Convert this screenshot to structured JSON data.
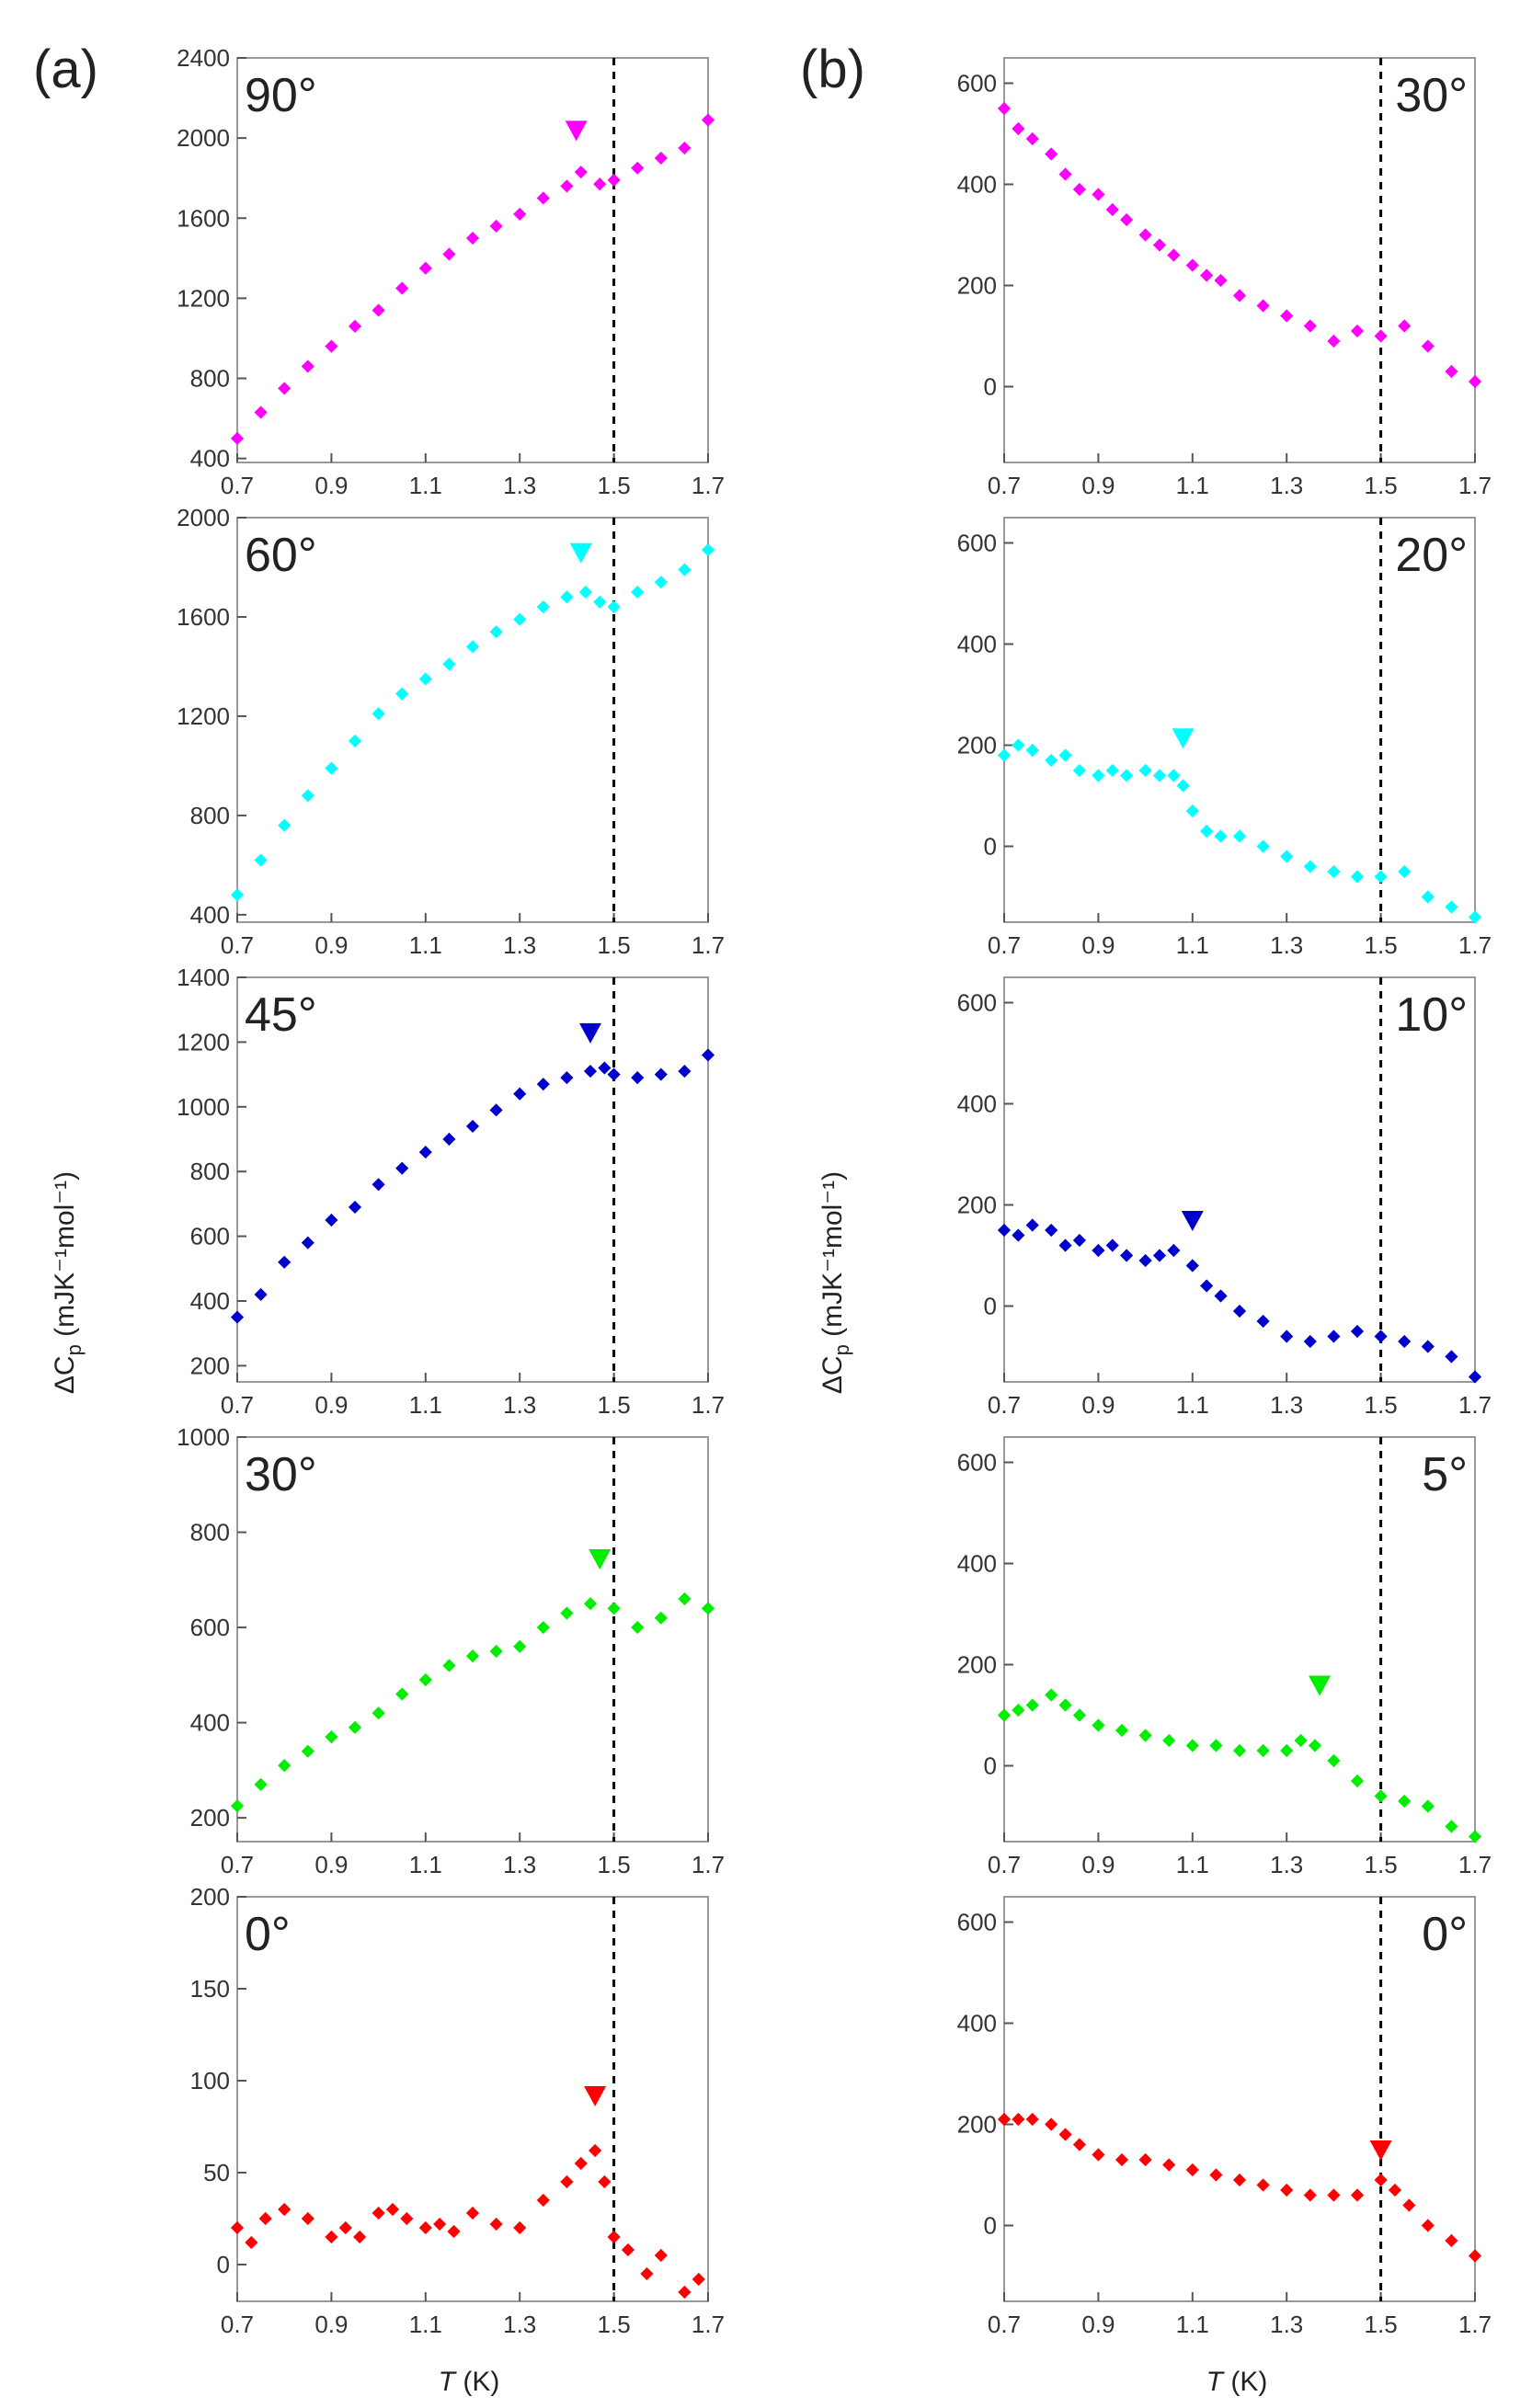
{
  "figure": {
    "panel_a_label": "(a)",
    "panel_b_label": "(b)",
    "y_axis_label_prefix": "ΔC",
    "y_axis_label_sub": "p",
    "y_axis_label_units": " (mJK⁻¹mol⁻¹)",
    "x_axis_label_var": "T",
    "x_axis_label_units": " (K)"
  },
  "colors": {
    "90": "#ff00ff",
    "60": "#00ffff",
    "45": "#0000cc",
    "30": "#00ee00",
    "20": "#00ffff",
    "10": "#0000cc",
    "5": "#00ee00",
    "0": "#ff0000",
    "dash": "#000000",
    "frame": "#999999"
  },
  "chart_data": [
    {
      "type": "scatter",
      "column": "a",
      "label": "90°",
      "color_key": "90",
      "xlim": [
        0.7,
        1.7
      ],
      "ylim": [
        380,
        2400
      ],
      "yticks": [
        400,
        800,
        1200,
        1600,
        2000,
        2400
      ],
      "xticks": [
        0.7,
        0.9,
        1.1,
        1.3,
        1.5,
        1.7
      ],
      "xticklabels": [
        "0.7",
        "0.9",
        "1.1",
        "1.3",
        "1.5",
        "1.7"
      ],
      "vline": 1.5,
      "marker": {
        "x": 1.42,
        "y": 2040
      },
      "x": [
        0.7,
        0.75,
        0.8,
        0.85,
        0.9,
        0.95,
        1.0,
        1.05,
        1.1,
        1.15,
        1.2,
        1.25,
        1.3,
        1.35,
        1.4,
        1.43,
        1.47,
        1.5,
        1.55,
        1.6,
        1.65,
        1.7
      ],
      "y": [
        500,
        630,
        750,
        860,
        960,
        1060,
        1140,
        1250,
        1350,
        1420,
        1500,
        1560,
        1620,
        1700,
        1760,
        1830,
        1770,
        1790,
        1850,
        1900,
        1950,
        2090
      ]
    },
    {
      "type": "scatter",
      "column": "a",
      "label": "60°",
      "color_key": "60",
      "xlim": [
        0.7,
        1.7
      ],
      "ylim": [
        370,
        2000
      ],
      "yticks": [
        400,
        800,
        1200,
        1600,
        2000
      ],
      "xticks": [
        0.7,
        0.9,
        1.1,
        1.3,
        1.5,
        1.7
      ],
      "xticklabels": [
        "0.7",
        "0.9",
        "1.1",
        "1.3",
        "1.5",
        "1.7"
      ],
      "vline": 1.5,
      "marker": {
        "x": 1.43,
        "y": 1860
      },
      "x": [
        0.7,
        0.75,
        0.8,
        0.85,
        0.9,
        0.95,
        1.0,
        1.05,
        1.1,
        1.15,
        1.2,
        1.25,
        1.3,
        1.35,
        1.4,
        1.44,
        1.47,
        1.5,
        1.55,
        1.6,
        1.65,
        1.7
      ],
      "y": [
        480,
        620,
        760,
        880,
        990,
        1100,
        1210,
        1290,
        1350,
        1410,
        1480,
        1540,
        1590,
        1640,
        1680,
        1700,
        1660,
        1640,
        1700,
        1740,
        1790,
        1870
      ]
    },
    {
      "type": "scatter",
      "column": "a",
      "label": "45°",
      "color_key": "45",
      "xlim": [
        0.7,
        1.7
      ],
      "ylim": [
        150,
        1400
      ],
      "yticks": [
        200,
        400,
        600,
        800,
        1000,
        1200,
        1400
      ],
      "xticks": [
        0.7,
        0.9,
        1.1,
        1.3,
        1.5,
        1.7
      ],
      "xticklabels": [
        "0.7",
        "0.9",
        "1.1",
        "1.3",
        "1.5",
        "1.7"
      ],
      "vline": 1.5,
      "marker": {
        "x": 1.45,
        "y": 1230
      },
      "x": [
        0.7,
        0.75,
        0.8,
        0.85,
        0.9,
        0.95,
        1.0,
        1.05,
        1.1,
        1.15,
        1.2,
        1.25,
        1.3,
        1.35,
        1.4,
        1.45,
        1.48,
        1.5,
        1.55,
        1.6,
        1.65,
        1.7
      ],
      "y": [
        350,
        420,
        520,
        580,
        650,
        690,
        760,
        810,
        860,
        900,
        940,
        990,
        1040,
        1070,
        1090,
        1110,
        1120,
        1100,
        1090,
        1100,
        1110,
        1160
      ]
    },
    {
      "type": "scatter",
      "column": "a",
      "label": "30°",
      "color_key": "30",
      "xlim": [
        0.7,
        1.7
      ],
      "ylim": [
        150,
        1000
      ],
      "yticks": [
        200,
        400,
        600,
        800,
        1000
      ],
      "xticks": [
        0.7,
        0.9,
        1.1,
        1.3,
        1.5,
        1.7
      ],
      "xticklabels": [
        "0.7",
        "0.9",
        "1.1",
        "1.3",
        "1.5",
        "1.7"
      ],
      "vline": 1.5,
      "marker": {
        "x": 1.47,
        "y": 745
      },
      "x": [
        0.7,
        0.75,
        0.8,
        0.85,
        0.9,
        0.95,
        1.0,
        1.05,
        1.1,
        1.15,
        1.2,
        1.25,
        1.3,
        1.35,
        1.4,
        1.45,
        1.5,
        1.55,
        1.6,
        1.65,
        1.7
      ],
      "y": [
        225,
        270,
        310,
        340,
        370,
        390,
        420,
        460,
        490,
        520,
        540,
        550,
        560,
        600,
        630,
        650,
        640,
        600,
        620,
        660,
        640
      ]
    },
    {
      "type": "scatter",
      "column": "a",
      "label": "0°",
      "color_key": "0",
      "xlim": [
        0.7,
        1.7
      ],
      "ylim": [
        -20,
        200
      ],
      "yticks": [
        0,
        50,
        100,
        150,
        200
      ],
      "xticks": [
        0.7,
        0.9,
        1.1,
        1.3,
        1.5,
        1.7
      ],
      "xticklabels": [
        "0.7",
        "0.9",
        "1.1",
        "1.3",
        "1.5",
        "1.7"
      ],
      "vline": 1.5,
      "marker": {
        "x": 1.46,
        "y": 92
      },
      "x": [
        0.7,
        0.73,
        0.76,
        0.8,
        0.85,
        0.9,
        0.93,
        0.96,
        1.0,
        1.03,
        1.06,
        1.1,
        1.13,
        1.16,
        1.2,
        1.25,
        1.3,
        1.35,
        1.4,
        1.43,
        1.46,
        1.48,
        1.5,
        1.53,
        1.57,
        1.6,
        1.65,
        1.68
      ],
      "y": [
        20,
        12,
        25,
        30,
        25,
        15,
        20,
        15,
        28,
        30,
        25,
        20,
        22,
        18,
        28,
        22,
        20,
        35,
        45,
        55,
        62,
        45,
        15,
        8,
        -5,
        5,
        -15,
        -8
      ]
    },
    {
      "type": "scatter",
      "column": "b",
      "label": "30°",
      "color_key": "90",
      "xlim": [
        0.7,
        1.7
      ],
      "ylim": [
        -150,
        650
      ],
      "yticks": [
        0,
        200,
        400,
        600
      ],
      "xticks": [
        0.7,
        0.9,
        1.1,
        1.3,
        1.5,
        1.7
      ],
      "xticklabels": [
        "0.7",
        "0.9",
        "1.1",
        "1.3",
        "1.5",
        "1.7"
      ],
      "vline": 1.5,
      "marker": null,
      "x": [
        0.7,
        0.73,
        0.76,
        0.8,
        0.83,
        0.86,
        0.9,
        0.93,
        0.96,
        1.0,
        1.03,
        1.06,
        1.1,
        1.13,
        1.16,
        1.2,
        1.25,
        1.3,
        1.35,
        1.4,
        1.45,
        1.5,
        1.55,
        1.6,
        1.65,
        1.7
      ],
      "y": [
        550,
        510,
        490,
        460,
        420,
        390,
        380,
        350,
        330,
        300,
        280,
        260,
        240,
        220,
        210,
        180,
        160,
        140,
        120,
        90,
        110,
        100,
        120,
        80,
        30,
        10
      ]
    },
    {
      "type": "scatter",
      "column": "b",
      "label": "20°",
      "color_key": "20",
      "xlim": [
        0.7,
        1.7
      ],
      "ylim": [
        -150,
        650
      ],
      "yticks": [
        0,
        200,
        400,
        600
      ],
      "xticks": [
        0.7,
        0.9,
        1.1,
        1.3,
        1.5,
        1.7
      ],
      "xticklabels": [
        "0.7",
        "0.9",
        "1.1",
        "1.3",
        "1.5",
        "1.7"
      ],
      "vline": 1.5,
      "marker": {
        "x": 1.08,
        "y": 215
      },
      "x": [
        0.7,
        0.73,
        0.76,
        0.8,
        0.83,
        0.86,
        0.9,
        0.93,
        0.96,
        1.0,
        1.03,
        1.06,
        1.08,
        1.1,
        1.13,
        1.16,
        1.2,
        1.25,
        1.3,
        1.35,
        1.4,
        1.45,
        1.5,
        1.55,
        1.6,
        1.65,
        1.7
      ],
      "y": [
        180,
        200,
        190,
        170,
        180,
        150,
        140,
        150,
        140,
        150,
        140,
        140,
        120,
        70,
        30,
        20,
        20,
        0,
        -20,
        -40,
        -50,
        -60,
        -60,
        -50,
        -100,
        -120,
        -140
      ]
    },
    {
      "type": "scatter",
      "column": "b",
      "label": "10°",
      "color_key": "10",
      "xlim": [
        0.7,
        1.7
      ],
      "ylim": [
        -150,
        650
      ],
      "yticks": [
        0,
        200,
        400,
        600
      ],
      "xticks": [
        0.7,
        0.9,
        1.1,
        1.3,
        1.5,
        1.7
      ],
      "xticklabels": [
        "0.7",
        "0.9",
        "1.1",
        "1.3",
        "1.5",
        "1.7"
      ],
      "vline": 1.5,
      "marker": {
        "x": 1.1,
        "y": 170
      },
      "x": [
        0.7,
        0.73,
        0.76,
        0.8,
        0.83,
        0.86,
        0.9,
        0.93,
        0.96,
        1.0,
        1.03,
        1.06,
        1.1,
        1.13,
        1.16,
        1.2,
        1.25,
        1.3,
        1.35,
        1.4,
        1.45,
        1.5,
        1.55,
        1.6,
        1.65,
        1.7
      ],
      "y": [
        150,
        140,
        160,
        150,
        120,
        130,
        110,
        120,
        100,
        90,
        100,
        110,
        80,
        40,
        20,
        -10,
        -30,
        -60,
        -70,
        -60,
        -50,
        -60,
        -70,
        -80,
        -100,
        -140
      ]
    },
    {
      "type": "scatter",
      "column": "b",
      "label": "5°",
      "color_key": "5",
      "xlim": [
        0.7,
        1.7
      ],
      "ylim": [
        -150,
        650
      ],
      "yticks": [
        0,
        200,
        400,
        600
      ],
      "xticks": [
        0.7,
        0.9,
        1.1,
        1.3,
        1.5,
        1.7
      ],
      "xticklabels": [
        "0.7",
        "0.9",
        "1.1",
        "1.3",
        "1.5",
        "1.7"
      ],
      "vline": 1.5,
      "marker": {
        "x": 1.37,
        "y": 160
      },
      "x": [
        0.7,
        0.73,
        0.76,
        0.8,
        0.83,
        0.86,
        0.9,
        0.95,
        1.0,
        1.05,
        1.1,
        1.15,
        1.2,
        1.25,
        1.3,
        1.33,
        1.36,
        1.4,
        1.45,
        1.5,
        1.55,
        1.6,
        1.65,
        1.7
      ],
      "y": [
        100,
        110,
        120,
        140,
        120,
        100,
        80,
        70,
        60,
        50,
        40,
        40,
        30,
        30,
        30,
        50,
        40,
        10,
        -30,
        -60,
        -70,
        -80,
        -120,
        -140
      ]
    },
    {
      "type": "scatter",
      "column": "b",
      "label": "0°",
      "color_key": "0",
      "xlim": [
        0.7,
        1.7
      ],
      "ylim": [
        -150,
        650
      ],
      "yticks": [
        0,
        200,
        400,
        600
      ],
      "xticks": [
        0.7,
        0.9,
        1.1,
        1.3,
        1.5,
        1.7
      ],
      "xticklabels": [
        "0.7",
        "0.9",
        "1.1",
        "1.3",
        "1.5",
        "1.7"
      ],
      "vline": 1.5,
      "marker": {
        "x": 1.5,
        "y": 150
      },
      "x": [
        0.7,
        0.73,
        0.76,
        0.8,
        0.83,
        0.86,
        0.9,
        0.95,
        1.0,
        1.05,
        1.1,
        1.15,
        1.2,
        1.25,
        1.3,
        1.35,
        1.4,
        1.45,
        1.5,
        1.53,
        1.56,
        1.6,
        1.65,
        1.7
      ],
      "y": [
        210,
        210,
        210,
        200,
        180,
        160,
        140,
        130,
        130,
        120,
        110,
        100,
        90,
        80,
        70,
        60,
        60,
        60,
        90,
        70,
        40,
        0,
        -30,
        -60
      ]
    }
  ]
}
